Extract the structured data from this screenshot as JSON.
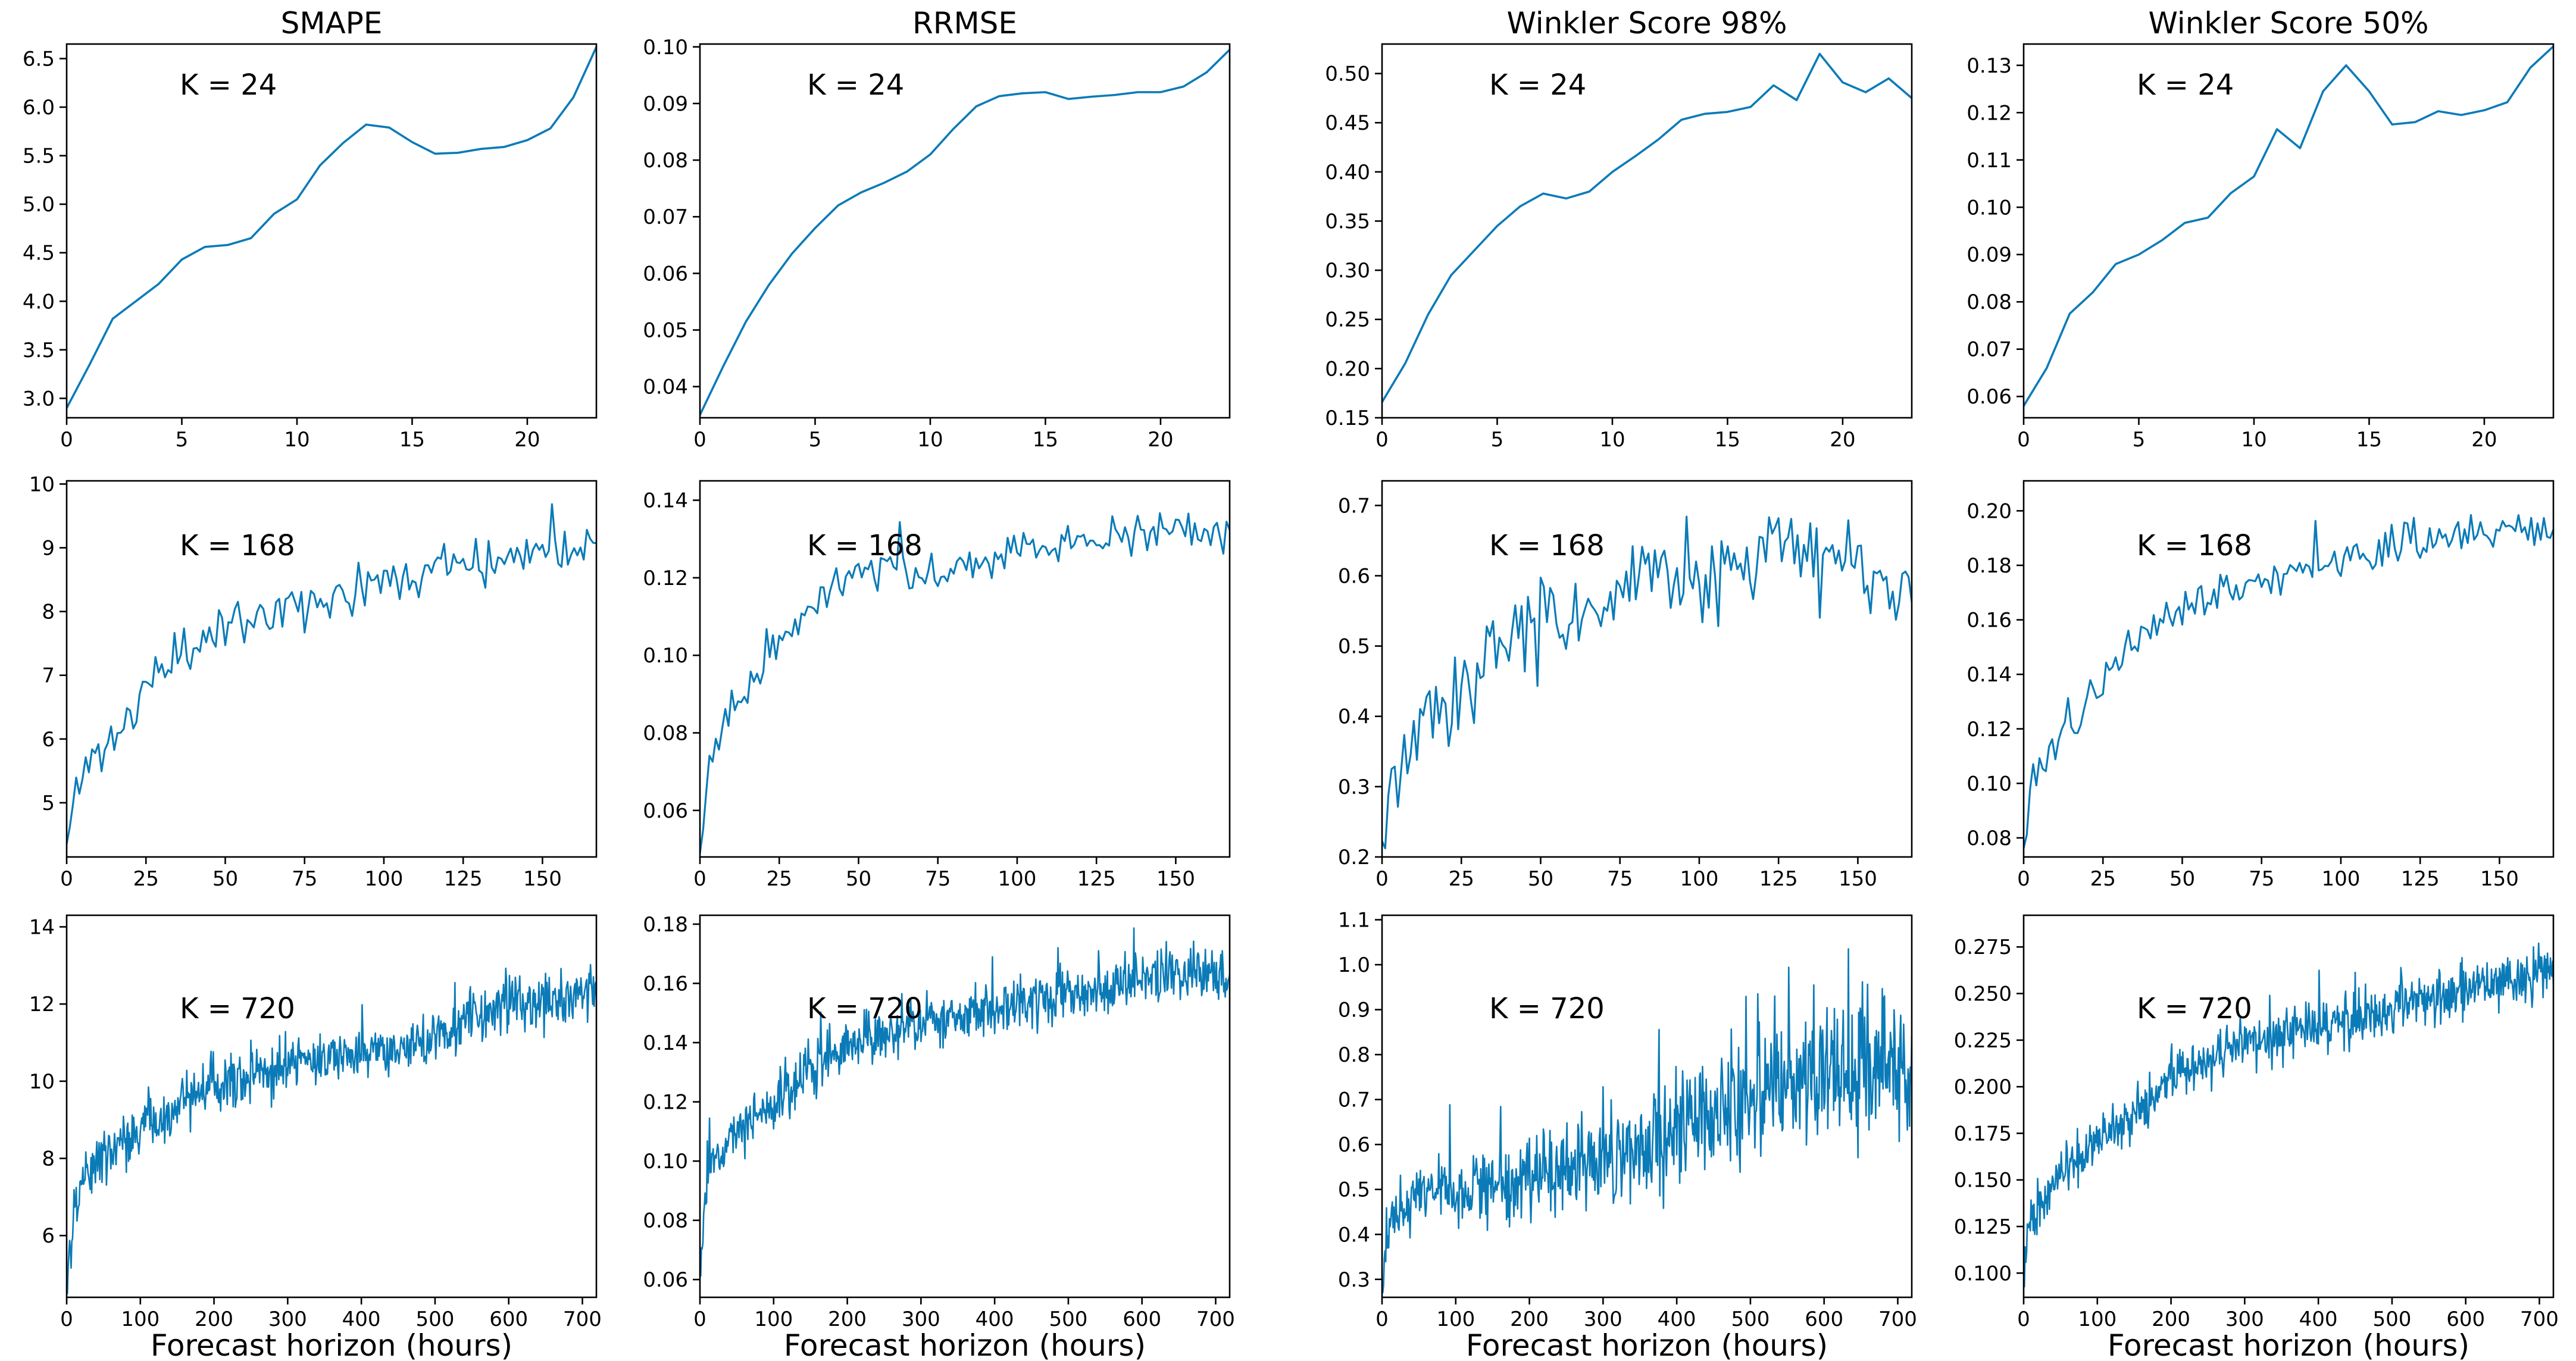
{
  "figure": {
    "line_color": "#0b7bb8"
  },
  "chart_data": [
    {
      "type": "line",
      "title": "SMAPE",
      "annotation": "K = 24",
      "xlabel": "",
      "ylabel": "",
      "xlim": [
        0,
        23
      ],
      "ylim": [
        2.8,
        6.65
      ],
      "xticks": [
        0,
        5,
        10,
        15,
        20
      ],
      "yticks": [
        3.0,
        3.5,
        4.0,
        4.5,
        5.0,
        5.5,
        6.0,
        6.5
      ],
      "ytick_decimals": 1,
      "x": [
        0,
        1,
        2,
        3,
        4,
        5,
        6,
        7,
        8,
        9,
        10,
        11,
        12,
        13,
        14,
        15,
        16,
        17,
        18,
        19,
        20,
        21,
        22,
        23
      ],
      "y": [
        2.9,
        3.35,
        3.82,
        4.0,
        4.18,
        4.43,
        4.56,
        4.58,
        4.65,
        4.9,
        5.05,
        5.4,
        5.63,
        5.82,
        5.79,
        5.64,
        5.52,
        5.53,
        5.57,
        5.59,
        5.66,
        5.78,
        6.1,
        6.62
      ]
    },
    {
      "type": "line",
      "title": "RRMSE",
      "annotation": "K = 24",
      "xlabel": "",
      "ylabel": "",
      "xlim": [
        0,
        23
      ],
      "ylim": [
        0.0345,
        0.1005
      ],
      "xticks": [
        0,
        5,
        10,
        15,
        20
      ],
      "yticks": [
        0.04,
        0.05,
        0.06,
        0.07,
        0.08,
        0.09,
        0.1
      ],
      "ytick_decimals": 2,
      "x": [
        0,
        1,
        2,
        3,
        4,
        5,
        6,
        7,
        8,
        9,
        10,
        11,
        12,
        13,
        14,
        15,
        16,
        17,
        18,
        19,
        20,
        21,
        22,
        23
      ],
      "y": [
        0.035,
        0.0435,
        0.0515,
        0.058,
        0.0635,
        0.068,
        0.072,
        0.0743,
        0.076,
        0.078,
        0.081,
        0.0855,
        0.0895,
        0.0913,
        0.0918,
        0.092,
        0.0908,
        0.0912,
        0.0915,
        0.092,
        0.092,
        0.093,
        0.0955,
        0.0995
      ]
    },
    {
      "type": "line",
      "title": "Winkler Score 98%",
      "annotation": "K = 24",
      "xlabel": "",
      "ylabel": "",
      "xlim": [
        0,
        23
      ],
      "ylim": [
        0.15,
        0.53
      ],
      "xticks": [
        0,
        5,
        10,
        15,
        20
      ],
      "yticks": [
        0.15,
        0.2,
        0.25,
        0.3,
        0.35,
        0.4,
        0.45,
        0.5
      ],
      "ytick_decimals": 2,
      "x": [
        0,
        1,
        2,
        3,
        4,
        5,
        6,
        7,
        8,
        9,
        10,
        11,
        12,
        13,
        14,
        15,
        16,
        17,
        18,
        19,
        20,
        21,
        22,
        23
      ],
      "y": [
        0.166,
        0.205,
        0.255,
        0.295,
        0.32,
        0.345,
        0.365,
        0.378,
        0.373,
        0.38,
        0.4,
        0.416,
        0.433,
        0.453,
        0.459,
        0.461,
        0.466,
        0.488,
        0.473,
        0.52,
        0.491,
        0.481,
        0.495,
        0.475
      ]
    },
    {
      "type": "line",
      "title": "Winkler Score 50%",
      "annotation": "K = 24",
      "xlabel": "",
      "ylabel": "",
      "xlim": [
        0,
        23
      ],
      "ylim": [
        0.0555,
        0.1345
      ],
      "xticks": [
        0,
        5,
        10,
        15,
        20
      ],
      "yticks": [
        0.06,
        0.07,
        0.08,
        0.09,
        0.1,
        0.11,
        0.12,
        0.13
      ],
      "ytick_decimals": 2,
      "x": [
        0,
        1,
        2,
        3,
        4,
        5,
        6,
        7,
        8,
        9,
        10,
        11,
        12,
        13,
        14,
        15,
        16,
        17,
        18,
        19,
        20,
        21,
        22,
        23
      ],
      "y": [
        0.058,
        0.066,
        0.0775,
        0.082,
        0.088,
        0.09,
        0.093,
        0.0967,
        0.0978,
        0.103,
        0.1065,
        0.1165,
        0.1125,
        0.1245,
        0.13,
        0.1245,
        0.1175,
        0.118,
        0.1203,
        0.1195,
        0.1205,
        0.1222,
        0.1295,
        0.134
      ]
    },
    {
      "type": "line",
      "title": "",
      "annotation": "K = 168",
      "xlabel": "",
      "ylabel": "",
      "xlim": [
        0,
        167
      ],
      "ylim": [
        4.15,
        10.05
      ],
      "xticks": [
        0,
        25,
        50,
        75,
        100,
        125,
        150
      ],
      "yticks": [
        5,
        6,
        7,
        8,
        9,
        10
      ],
      "ytick_decimals": 0,
      "trend_x": [
        0,
        3,
        10,
        20,
        27,
        35,
        45,
        55,
        70,
        85,
        100,
        120,
        140,
        160,
        167
      ],
      "trend_y": [
        4.3,
        5.3,
        5.8,
        6.3,
        7.0,
        7.2,
        7.7,
        7.9,
        8.05,
        8.2,
        8.55,
        8.7,
        8.9,
        9.0,
        9.0
      ],
      "noise_amp": 0.22,
      "seed": 11,
      "n_points": 168
    },
    {
      "type": "line",
      "title": "",
      "annotation": "K = 168",
      "xlabel": "",
      "ylabel": "",
      "xlim": [
        0,
        167
      ],
      "ylim": [
        0.048,
        0.145
      ],
      "xticks": [
        0,
        25,
        50,
        75,
        100,
        125,
        150
      ],
      "yticks": [
        0.06,
        0.08,
        0.1,
        0.12,
        0.14
      ],
      "ytick_decimals": 2,
      "trend_x": [
        0,
        3,
        10,
        20,
        30,
        40,
        50,
        60,
        70,
        90,
        110,
        130,
        150,
        167
      ],
      "trend_y": [
        0.05,
        0.072,
        0.085,
        0.097,
        0.108,
        0.115,
        0.123,
        0.123,
        0.12,
        0.124,
        0.128,
        0.131,
        0.133,
        0.13
      ],
      "noise_amp": 0.0032,
      "seed": 23,
      "n_points": 168
    },
    {
      "type": "line",
      "title": "",
      "annotation": "K = 168",
      "xlabel": "",
      "ylabel": "",
      "xlim": [
        0,
        167
      ],
      "ylim": [
        0.2,
        0.735
      ],
      "xticks": [
        0,
        25,
        50,
        75,
        100,
        125,
        150
      ],
      "yticks": [
        0.2,
        0.3,
        0.4,
        0.5,
        0.6,
        0.7
      ],
      "ytick_decimals": 1,
      "trend_x": [
        0,
        3,
        10,
        20,
        35,
        50,
        65,
        80,
        95,
        110,
        125,
        140,
        155,
        167
      ],
      "trend_y": [
        0.22,
        0.3,
        0.37,
        0.43,
        0.48,
        0.53,
        0.56,
        0.59,
        0.58,
        0.6,
        0.64,
        0.62,
        0.6,
        0.58
      ],
      "noise_amp": 0.04,
      "seed": 37,
      "n_points": 168
    },
    {
      "type": "line",
      "title": "",
      "annotation": "K = 168",
      "xlabel": "",
      "ylabel": "",
      "xlim": [
        0,
        167
      ],
      "ylim": [
        0.073,
        0.211
      ],
      "xticks": [
        0,
        25,
        50,
        75,
        100,
        125,
        150
      ],
      "yticks": [
        0.08,
        0.1,
        0.12,
        0.14,
        0.16,
        0.18,
        0.2
      ],
      "ytick_decimals": 2,
      "trend_x": [
        0,
        3,
        10,
        20,
        30,
        40,
        50,
        65,
        80,
        95,
        110,
        130,
        150,
        167
      ],
      "trend_y": [
        0.08,
        0.1,
        0.115,
        0.128,
        0.148,
        0.158,
        0.167,
        0.17,
        0.175,
        0.18,
        0.185,
        0.19,
        0.193,
        0.193
      ],
      "noise_amp": 0.0042,
      "seed": 53,
      "n_points": 168
    },
    {
      "type": "line",
      "title": "",
      "annotation": "K = 720",
      "xlabel": "Forecast horizon (hours)",
      "ylabel": "",
      "xlim": [
        0,
        719
      ],
      "ylim": [
        4.4,
        14.3
      ],
      "xticks": [
        0,
        100,
        200,
        300,
        400,
        500,
        600,
        700
      ],
      "yticks": [
        6,
        8,
        10,
        12,
        14
      ],
      "ytick_decimals": 0,
      "trend_x": [
        0,
        10,
        40,
        80,
        120,
        180,
        250,
        350,
        450,
        500,
        550,
        600,
        719
      ],
      "trend_y": [
        4.6,
        6.8,
        7.9,
        8.4,
        8.9,
        9.8,
        10.2,
        10.6,
        10.8,
        11.1,
        11.7,
        12.0,
        12.2
      ],
      "noise_amp": 0.42,
      "seed": 71,
      "n_points": 720
    },
    {
      "type": "line",
      "title": "",
      "annotation": "K = 720",
      "xlabel": "Forecast horizon (hours)",
      "ylabel": "",
      "xlim": [
        0,
        719
      ],
      "ylim": [
        0.054,
        0.183
      ],
      "xticks": [
        0,
        100,
        200,
        300,
        400,
        500,
        600,
        700
      ],
      "yticks": [
        0.06,
        0.08,
        0.1,
        0.12,
        0.14,
        0.16,
        0.18
      ],
      "ytick_decimals": 2,
      "trend_x": [
        0,
        10,
        50,
        100,
        150,
        200,
        300,
        400,
        500,
        600,
        719
      ],
      "trend_y": [
        0.06,
        0.098,
        0.11,
        0.12,
        0.13,
        0.14,
        0.146,
        0.152,
        0.156,
        0.162,
        0.164
      ],
      "noise_amp": 0.0055,
      "seed": 89,
      "n_points": 720
    },
    {
      "type": "line",
      "title": "",
      "annotation": "K = 720",
      "xlabel": "Forecast horizon (hours)",
      "ylabel": "",
      "xlim": [
        0,
        719
      ],
      "ylim": [
        0.26,
        1.11
      ],
      "xticks": [
        0,
        100,
        200,
        300,
        400,
        500,
        600,
        700
      ],
      "yticks": [
        0.3,
        0.4,
        0.5,
        0.6,
        0.7,
        0.8,
        0.9,
        1.0,
        1.1
      ],
      "ytick_decimals": 1,
      "trend_x": [
        0,
        10,
        50,
        150,
        250,
        350,
        450,
        550,
        650,
        719
      ],
      "trend_y": [
        0.28,
        0.42,
        0.49,
        0.51,
        0.55,
        0.6,
        0.66,
        0.74,
        0.76,
        0.76
      ],
      "noise_amp": 0.04,
      "noise_growth": 2.4,
      "seed": 97,
      "n_points": 720
    },
    {
      "type": "line",
      "title": "",
      "annotation": "K = 720",
      "xlabel": "Forecast horizon (hours)",
      "ylabel": "",
      "xlim": [
        0,
        719
      ],
      "ylim": [
        0.087,
        0.292
      ],
      "xticks": [
        0,
        100,
        200,
        300,
        400,
        500,
        600,
        700
      ],
      "yticks": [
        0.1,
        0.125,
        0.15,
        0.175,
        0.2,
        0.225,
        0.25,
        0.275
      ],
      "ytick_decimals": 3,
      "trend_x": [
        0,
        10,
        50,
        100,
        150,
        200,
        300,
        400,
        500,
        600,
        719
      ],
      "trend_y": [
        0.095,
        0.13,
        0.155,
        0.17,
        0.185,
        0.205,
        0.222,
        0.232,
        0.24,
        0.252,
        0.262
      ],
      "noise_amp": 0.0085,
      "seed": 113,
      "n_points": 720
    }
  ]
}
